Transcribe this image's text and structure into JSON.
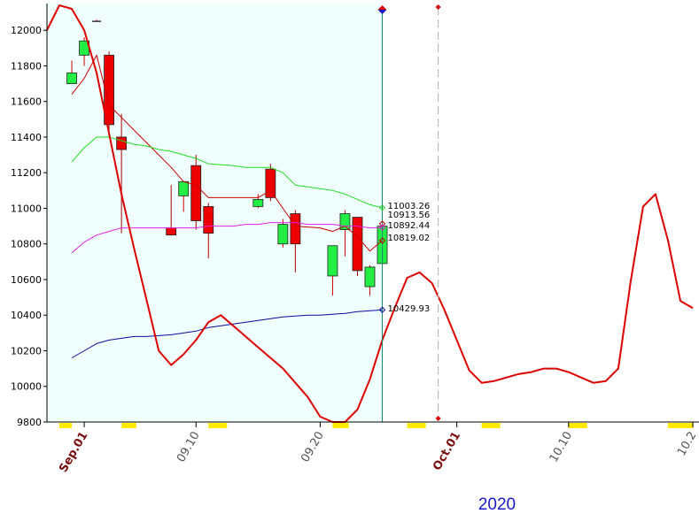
{
  "chart_data": {
    "type": "candlestick",
    "title": "",
    "xlabel": "2020",
    "ylabel": "",
    "ylim": [
      9800,
      12150
    ],
    "yticks": [
      9800,
      10000,
      10200,
      10400,
      10600,
      10800,
      11000,
      11200,
      11400,
      11600,
      11800,
      12000
    ],
    "xticks": [
      {
        "label": "Sep.01",
        "day": 0,
        "style": "month"
      },
      {
        "label": "09.10",
        "day": 9,
        "style": "day"
      },
      {
        "label": "09.20",
        "day": 19,
        "style": "day"
      },
      {
        "label": "Oct.01",
        "day": 30,
        "style": "month"
      },
      {
        "label": "10.10",
        "day": 39,
        "style": "day"
      },
      {
        "label": "10.2",
        "day": 49,
        "style": "day"
      }
    ],
    "xlim_days": [
      -3,
      49.5
    ],
    "year_label": "2020",
    "shaded_until_day": 24,
    "forecast_marker_day": 28.5,
    "candles": [
      {
        "day": -1,
        "open": 11700,
        "high": 11830,
        "low": 11700,
        "close": 11760,
        "dir": "up"
      },
      {
        "day": 0,
        "open": 11860,
        "high": 11960,
        "low": 11800,
        "close": 11940,
        "dir": "up"
      },
      {
        "day": 1,
        "open": 12050,
        "high": 12060,
        "low": 12050,
        "close": 12050,
        "dir": "doji"
      },
      {
        "day": 2,
        "open": 11860,
        "high": 11880,
        "low": 11440,
        "close": 11470,
        "dir": "down"
      },
      {
        "day": 3,
        "open": 11400,
        "high": 11530,
        "low": 10860,
        "close": 11330,
        "dir": "down"
      },
      {
        "day": 7,
        "open": 10890,
        "high": 11130,
        "low": 10850,
        "close": 10850,
        "dir": "down"
      },
      {
        "day": 8,
        "open": 11070,
        "high": 11140,
        "low": 10980,
        "close": 11150,
        "dir": "up"
      },
      {
        "day": 9,
        "open": 11240,
        "high": 11300,
        "low": 10880,
        "close": 10930,
        "dir": "down"
      },
      {
        "day": 10,
        "open": 11010,
        "high": 11030,
        "low": 10720,
        "close": 10860,
        "dir": "down"
      },
      {
        "day": 14,
        "open": 11010,
        "high": 11080,
        "low": 11000,
        "close": 11050,
        "dir": "up"
      },
      {
        "day": 15,
        "open": 11220,
        "high": 11250,
        "low": 11040,
        "close": 11060,
        "dir": "down"
      },
      {
        "day": 16,
        "open": 10800,
        "high": 10940,
        "low": 10780,
        "close": 10910,
        "dir": "up"
      },
      {
        "day": 17,
        "open": 10970,
        "high": 10990,
        "low": 10640,
        "close": 10800,
        "dir": "down"
      },
      {
        "day": 20,
        "open": 10620,
        "high": 10780,
        "low": 10510,
        "close": 10790,
        "dir": "up"
      },
      {
        "day": 21,
        "open": 10880,
        "high": 10990,
        "low": 10730,
        "close": 10970,
        "dir": "up"
      },
      {
        "day": 22,
        "open": 10950,
        "high": 10950,
        "low": 10620,
        "close": 10650,
        "dir": "down"
      },
      {
        "day": 23,
        "open": 10560,
        "high": 10680,
        "low": 10510,
        "close": 10670,
        "dir": "up"
      },
      {
        "day": 24,
        "open": 10690,
        "high": 10900,
        "low": 10690,
        "close": 10900,
        "dir": "up"
      }
    ],
    "series": [
      {
        "key": "thin_red",
        "color": "#cc0000",
        "width": 1,
        "points": [
          [
            -1,
            11640
          ],
          [
            0,
            11730
          ],
          [
            1,
            11860
          ],
          [
            2,
            11580
          ],
          [
            3,
            11510
          ],
          [
            4,
            11440
          ],
          [
            5,
            11370
          ],
          [
            6,
            11300
          ],
          [
            7,
            11230
          ],
          [
            8,
            11150
          ],
          [
            9,
            11130
          ],
          [
            10,
            11060
          ],
          [
            13,
            11060
          ],
          [
            14,
            11060
          ],
          [
            15,
            11100
          ],
          [
            16,
            11000
          ],
          [
            17,
            10900
          ],
          [
            19,
            10890
          ],
          [
            20,
            10870
          ],
          [
            21,
            10900
          ],
          [
            22,
            10840
          ],
          [
            23,
            10760
          ],
          [
            24,
            10819.02
          ]
        ]
      },
      {
        "key": "green",
        "color": "#22dd22",
        "width": 1,
        "points": [
          [
            -1,
            11260
          ],
          [
            0,
            11340
          ],
          [
            1,
            11400
          ],
          [
            2,
            11400
          ],
          [
            3,
            11380
          ],
          [
            4,
            11360
          ],
          [
            5,
            11350
          ],
          [
            6,
            11330
          ],
          [
            7,
            11320
          ],
          [
            8,
            11300
          ],
          [
            9,
            11280
          ],
          [
            10,
            11250
          ],
          [
            12,
            11240
          ],
          [
            13,
            11230
          ],
          [
            14,
            11230
          ],
          [
            15,
            11230
          ],
          [
            16,
            11200
          ],
          [
            17,
            11130
          ],
          [
            18,
            11120
          ],
          [
            19,
            11110
          ],
          [
            20,
            11100
          ],
          [
            21,
            11080
          ],
          [
            22,
            11050
          ],
          [
            23,
            11020
          ],
          [
            24,
            11003.26
          ]
        ]
      },
      {
        "key": "magenta",
        "color": "#e020e0",
        "width": 1,
        "points": [
          [
            -1,
            10750
          ],
          [
            0,
            10810
          ],
          [
            1,
            10850
          ],
          [
            2,
            10870
          ],
          [
            3,
            10890
          ],
          [
            4,
            10890
          ],
          [
            5,
            10890
          ],
          [
            6,
            10890
          ],
          [
            7,
            10890
          ],
          [
            8,
            10890
          ],
          [
            9,
            10890
          ],
          [
            10,
            10900
          ],
          [
            11,
            10900
          ],
          [
            12,
            10900
          ],
          [
            13,
            10910
          ],
          [
            14,
            10910
          ],
          [
            15,
            10920
          ],
          [
            16,
            10920
          ],
          [
            17,
            10920
          ],
          [
            18,
            10910
          ],
          [
            19,
            10910
          ],
          [
            20,
            10910
          ],
          [
            21,
            10900
          ],
          [
            22,
            10900
          ],
          [
            23,
            10890
          ],
          [
            24,
            10892.44
          ]
        ]
      },
      {
        "key": "blue",
        "color": "#0a0aa0",
        "width": 1,
        "points": [
          [
            -1,
            10160
          ],
          [
            0,
            10200
          ],
          [
            1,
            10240
          ],
          [
            2,
            10260
          ],
          [
            3,
            10270
          ],
          [
            4,
            10280
          ],
          [
            5,
            10280
          ],
          [
            6,
            10285
          ],
          [
            7,
            10290
          ],
          [
            8,
            10300
          ],
          [
            9,
            10310
          ],
          [
            10,
            10330
          ],
          [
            11,
            10340
          ],
          [
            12,
            10350
          ],
          [
            13,
            10360
          ],
          [
            14,
            10370
          ],
          [
            15,
            10380
          ],
          [
            16,
            10390
          ],
          [
            17,
            10395
          ],
          [
            18,
            10400
          ],
          [
            19,
            10400
          ],
          [
            20,
            10405
          ],
          [
            21,
            10410
          ],
          [
            22,
            10420
          ],
          [
            23,
            10425
          ],
          [
            24,
            10429.93
          ]
        ]
      },
      {
        "key": "thick_red",
        "color": "#dd0000",
        "width": 2,
        "points": [
          [
            -3,
            12000
          ],
          [
            -2,
            12140
          ],
          [
            -1,
            12120
          ],
          [
            0,
            12000
          ],
          [
            1,
            11760
          ],
          [
            2,
            11420
          ],
          [
            3,
            11080
          ],
          [
            4,
            10780
          ],
          [
            5,
            10490
          ],
          [
            6,
            10200
          ],
          [
            7,
            10120
          ],
          [
            8,
            10180
          ],
          [
            9,
            10260
          ],
          [
            10,
            10360
          ],
          [
            11,
            10400
          ],
          [
            12,
            10340
          ],
          [
            13,
            10280
          ],
          [
            14,
            10220
          ],
          [
            15,
            10160
          ],
          [
            16,
            10100
          ],
          [
            17,
            10020
          ],
          [
            18,
            9940
          ],
          [
            19,
            9830
          ],
          [
            20,
            9800
          ],
          [
            21,
            9800
          ],
          [
            22,
            9870
          ],
          [
            23,
            10040
          ],
          [
            24,
            10260
          ],
          [
            25,
            10440
          ],
          [
            26,
            10610
          ],
          [
            27,
            10640
          ],
          [
            28,
            10580
          ],
          [
            29,
            10430
          ],
          [
            30,
            10260
          ],
          [
            31,
            10090
          ],
          [
            32,
            10020
          ],
          [
            33,
            10030
          ],
          [
            34,
            10050
          ],
          [
            35,
            10070
          ],
          [
            36,
            10080
          ],
          [
            37,
            10100
          ],
          [
            38,
            10100
          ],
          [
            39,
            10080
          ],
          [
            40,
            10050
          ],
          [
            41,
            10020
          ],
          [
            42,
            10030
          ],
          [
            43,
            10100
          ],
          [
            44,
            10590
          ],
          [
            45,
            11010
          ],
          [
            46,
            11080
          ],
          [
            47,
            10820
          ],
          [
            48,
            10480
          ],
          [
            49,
            10440
          ]
        ]
      }
    ],
    "value_labels": [
      {
        "text": "11003.26",
        "value": 11003.26,
        "color": "#22dd22"
      },
      {
        "text": "10913.56",
        "value": 10913.56,
        "color": "#cc0000"
      },
      {
        "text": "10892.44",
        "value": 10892.44,
        "color": "#e020e0"
      },
      {
        "text": "10819.02",
        "value": 10819.02,
        "color": "#cc0000"
      },
      {
        "text": "10429.93",
        "value": 10429.93,
        "color": "#0a0aa0"
      }
    ],
    "colors": {
      "up": "#22ee44",
      "down": "#ee0000",
      "shade": "#effffd",
      "today_line": "#138a6a",
      "forecast_line": "#bbbbbb",
      "month_tick": "#7a0e0e",
      "day_tick": "#555555",
      "x_bar": "#ffea00",
      "year": "#1a1acc"
    }
  }
}
